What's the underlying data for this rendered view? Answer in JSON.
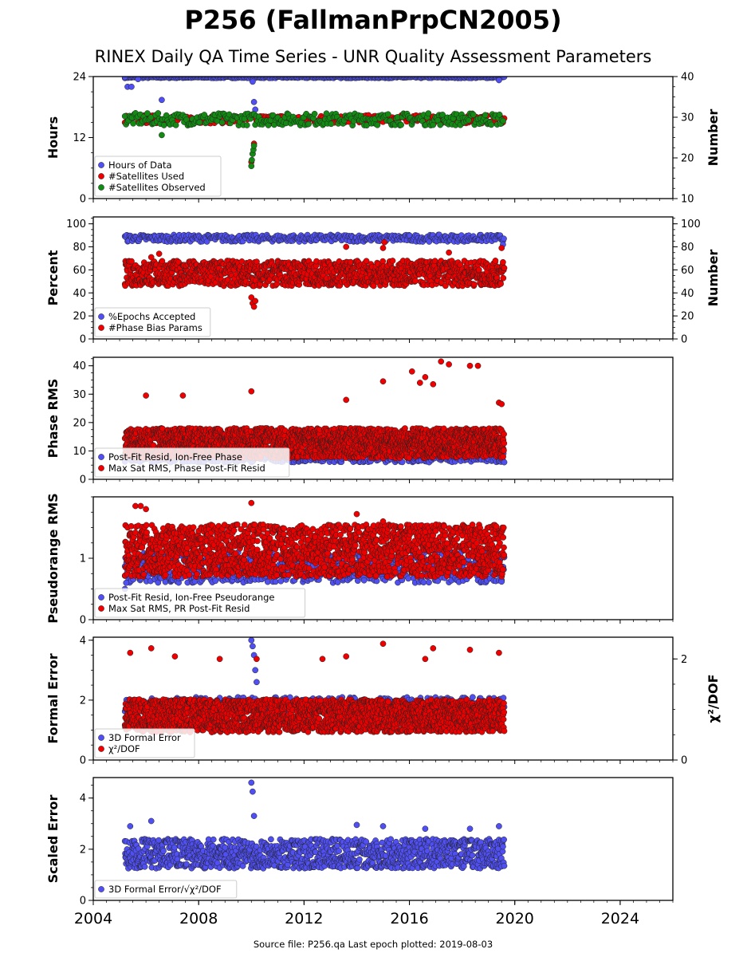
{
  "title": "P256 (FallmanPrpCN2005)",
  "subtitle": "RINEX Daily QA Time Series - UNR Quality Assessment Parameters",
  "footer": "Source file: P256.qa Last epoch plotted: 2019-08-03",
  "x_axis": {
    "range": [
      2004,
      2026
    ],
    "ticks": [
      "2004",
      "2008",
      "2012",
      "2016",
      "2020",
      "2024"
    ]
  },
  "colors": {
    "blue": "#4f4ff2",
    "red": "#ee0000",
    "green": "#138a13",
    "edge": "#222222"
  },
  "chart_data": [
    {
      "type": "scatter",
      "ylabel": "Hours",
      "ylabel_right": "Number",
      "y_left": {
        "range": [
          0,
          24
        ],
        "ticks": [
          "0",
          "12",
          "24"
        ]
      },
      "y_right": {
        "range": [
          10,
          40
        ],
        "ticks": [
          "10",
          "20",
          "30",
          "40"
        ]
      },
      "legend": "lower-left",
      "series": [
        {
          "name": "Hours of Data",
          "color": "#4f4ff2",
          "axis": "left",
          "x": [
            2005.2,
            2005.3,
            2005.45,
            2005.7,
            2006.6,
            2010.05,
            2010.1,
            2010.15,
            2019.4
          ],
          "y": [
            23.9,
            22.0,
            22.0,
            23.5,
            19.4,
            23.0,
            19.0,
            17.5,
            23.3
          ],
          "band": {
            "from": 2005.2,
            "to": 2019.6,
            "lo": 23.7,
            "hi": 24.0,
            "step": 0.04
          }
        },
        {
          "name": "#Satellites Used",
          "color": "#ee0000",
          "axis": "right",
          "x": [
            2010.0,
            2010.05,
            2010.1
          ],
          "y": [
            19.0,
            21.0,
            23.5
          ],
          "band": {
            "from": 2005.2,
            "to": 2019.6,
            "lo": 28.5,
            "hi": 30.5,
            "step": 0.05
          }
        },
        {
          "name": "#Satellites Observed",
          "color": "#138a13",
          "axis": "right",
          "x": [
            2006.6,
            2010.0,
            2010.02,
            2010.05,
            2010.08,
            2010.1
          ],
          "y": [
            25.6,
            18.0,
            19.5,
            21.0,
            22.0,
            23.0
          ],
          "band": {
            "from": 2005.2,
            "to": 2019.6,
            "lo": 28.0,
            "hi": 31.0,
            "step": 0.045
          }
        }
      ]
    },
    {
      "type": "scatter",
      "ylabel": "Percent",
      "ylabel_right": "Number",
      "y_left": {
        "range": [
          0,
          106
        ],
        "ticks": [
          "0",
          "20",
          "40",
          "60",
          "80",
          "100"
        ]
      },
      "y_right": {
        "range": [
          0,
          106
        ],
        "ticks": [
          "0",
          "20",
          "40",
          "60",
          "80",
          "100"
        ]
      },
      "legend": "lower-left",
      "series": [
        {
          "name": "%Epochs Accepted",
          "color": "#4f4ff2",
          "axis": "left",
          "x": [
            2019.55
          ],
          "y": [
            82
          ],
          "band": {
            "from": 2005.2,
            "to": 2019.6,
            "lo": 84.5,
            "hi": 90.5,
            "step": 0.035
          }
        },
        {
          "name": "#Phase Bias Params",
          "color": "#ee0000",
          "axis": "right",
          "x": [
            2010.0,
            2010.05,
            2010.1,
            2010.15,
            2006.2,
            2006.5,
            2013.6,
            2015.0,
            2015.05,
            2017.5,
            2019.5
          ],
          "y": [
            36,
            31,
            28,
            33,
            71,
            74,
            80,
            79,
            84,
            75,
            79
          ],
          "band": {
            "from": 2005.2,
            "to": 2019.6,
            "lo": 46,
            "hi": 68,
            "step": 0.012
          }
        }
      ]
    },
    {
      "type": "scatter",
      "ylabel": "Phase RMS",
      "y_left": {
        "range": [
          0,
          43
        ],
        "ticks": [
          "0",
          "10",
          "20",
          "30",
          "40"
        ]
      },
      "legend": "lower-left",
      "series": [
        {
          "name": "Post-Fit Resid, Ion-Free Phase",
          "color": "#4f4ff2",
          "axis": "left",
          "x": [],
          "y": [],
          "band": {
            "from": 2005.2,
            "to": 2019.6,
            "lo": 6.0,
            "hi": 9.5,
            "step": 0.03
          }
        },
        {
          "name": "Max Sat RMS, Phase Post-Fit Resid",
          "color": "#ee0000",
          "axis": "left",
          "x": [
            2006.0,
            2007.4,
            2010.0,
            2013.6,
            2015.0,
            2016.1,
            2016.4,
            2016.6,
            2016.9,
            2017.2,
            2017.5,
            2018.3,
            2018.6,
            2019.4,
            2019.5
          ],
          "y": [
            29.5,
            29.5,
            31.0,
            28.0,
            34.5,
            38.0,
            34.0,
            36.0,
            33.5,
            41.5,
            40.5,
            40.0,
            40.0,
            27.0,
            26.5
          ],
          "band": {
            "from": 2005.2,
            "to": 2019.6,
            "lo": 7.5,
            "hi": 18,
            "step": 0.006
          }
        }
      ]
    },
    {
      "type": "scatter",
      "ylabel": "Pseudorange RMS",
      "y_left": {
        "range": [
          0,
          2.0
        ],
        "ticks": [
          "0",
          "1"
        ]
      },
      "legend": "lower-left",
      "series": [
        {
          "name": "Post-Fit Resid, Ion-Free Pseudorange",
          "color": "#4f4ff2",
          "axis": "left",
          "x": [
            2005.2,
            2005.25,
            2019.5
          ],
          "y": [
            0.5,
            0.6,
            0.62
          ],
          "band": {
            "from": 2005.2,
            "to": 2019.6,
            "lo": 0.6,
            "hi": 1.1,
            "step": 0.02
          }
        },
        {
          "name": "Max Sat RMS, PR Post-Fit Resid",
          "color": "#ee0000",
          "axis": "left",
          "x": [
            2005.6,
            2005.8,
            2006.0,
            2010.0,
            2014.0,
            2015.0
          ],
          "y": [
            1.85,
            1.85,
            1.8,
            1.9,
            1.72,
            1.6
          ],
          "band": {
            "from": 2005.2,
            "to": 2019.6,
            "lo": 0.7,
            "hi": 1.55,
            "step": 0.008
          }
        }
      ]
    },
    {
      "type": "scatter",
      "ylabel": "Formal Error",
      "ylabel_right": "χ²/DOF",
      "y_left": {
        "range": [
          0,
          4.1
        ],
        "ticks": [
          "0",
          "2",
          "4"
        ]
      },
      "y_right": {
        "range": [
          0,
          2.43
        ],
        "ticks": [
          "0",
          "2"
        ]
      },
      "legend": "lower-left",
      "series": [
        {
          "name": "3D Formal Error",
          "color": "#4f4ff2",
          "axis": "left",
          "x": [
            2010.0,
            2010.05,
            2010.1,
            2010.15,
            2010.2
          ],
          "y": [
            4.0,
            3.8,
            3.5,
            3.0,
            2.6
          ],
          "band": {
            "from": 2005.2,
            "to": 2019.6,
            "lo": 1.6,
            "hi": 2.1,
            "step": 0.03
          }
        },
        {
          "name": "χ²/DOF",
          "color": "#ee0000",
          "axis": "right",
          "x": [
            2005.4,
            2006.2,
            2007.1,
            2008.8,
            2010.2,
            2012.7,
            2013.6,
            2015.0,
            2016.6,
            2016.9,
            2018.3,
            2019.4
          ],
          "y": [
            2.12,
            2.21,
            2.05,
            2.0,
            2.0,
            2.0,
            2.05,
            2.3,
            2.0,
            2.21,
            2.18,
            2.12
          ],
          "band": {
            "from": 2005.2,
            "to": 2019.6,
            "lo": 0.55,
            "hi": 1.2,
            "step": 0.007
          }
        }
      ]
    },
    {
      "type": "scatter",
      "ylabel": "Scaled Error",
      "y_left": {
        "range": [
          0,
          4.8
        ],
        "ticks": [
          "0",
          "2",
          "4"
        ]
      },
      "legend": "lower-left",
      "series": [
        {
          "name": "3D Formal Error/√χ²/DOF",
          "color": "#4f4ff2",
          "axis": "left",
          "x": [
            2005.4,
            2006.2,
            2010.0,
            2010.05,
            2010.1,
            2014.0,
            2015.0,
            2016.6,
            2018.3,
            2019.4
          ],
          "y": [
            2.9,
            3.1,
            4.6,
            4.25,
            3.3,
            2.95,
            2.9,
            2.8,
            2.8,
            2.9
          ],
          "band": {
            "from": 2005.2,
            "to": 2019.6,
            "lo": 1.25,
            "hi": 2.4,
            "step": 0.012
          }
        }
      ]
    }
  ]
}
